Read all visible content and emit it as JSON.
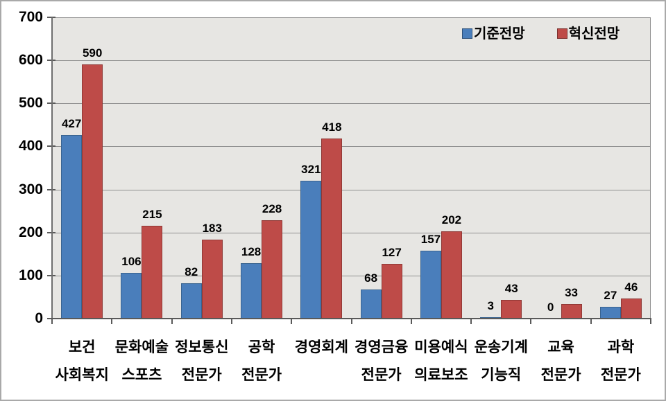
{
  "chart_data": {
    "type": "bar",
    "title": "",
    "xlabel": "",
    "ylabel": "",
    "categories": [
      {
        "line1": "보건",
        "line2": "사회복지"
      },
      {
        "line1": "문화예술",
        "line2": "스포츠"
      },
      {
        "line1": "정보통신",
        "line2": "전문가"
      },
      {
        "line1": "공학",
        "line2": "전문가"
      },
      {
        "line1": "경영회계",
        "line2": ""
      },
      {
        "line1": "경영금융",
        "line2": "전문가"
      },
      {
        "line1": "미용예식",
        "line2": "의료보조"
      },
      {
        "line1": "운송기계",
        "line2": "기능직"
      },
      {
        "line1": "교육",
        "line2": "전문가"
      },
      {
        "line1": "과학",
        "line2": "전문가"
      }
    ],
    "series": [
      {
        "name": "기준전망",
        "color": "#4A7EBB",
        "border_color": "#39638F",
        "values": [
          427,
          106,
          82,
          128,
          321,
          68,
          157,
          3,
          0,
          27
        ]
      },
      {
        "name": "혁신전망",
        "color": "#BE4B48",
        "border_color": "#8F3835",
        "values": [
          590,
          215,
          183,
          228,
          418,
          127,
          202,
          43,
          33,
          46
        ]
      }
    ],
    "ylim": [
      0,
      700
    ],
    "yticks": [
      0,
      100,
      200,
      300,
      400,
      500,
      600,
      700
    ],
    "grid": true,
    "legend_position": "top-right",
    "plot_bg_color": "#E7E6E3",
    "gridline_color": "#8F8F8F",
    "axis_color": "#595959",
    "y_axis_color": "#6E6E6E",
    "label_color": "#000000",
    "outer_bg_color": "#FFFFFF"
  }
}
